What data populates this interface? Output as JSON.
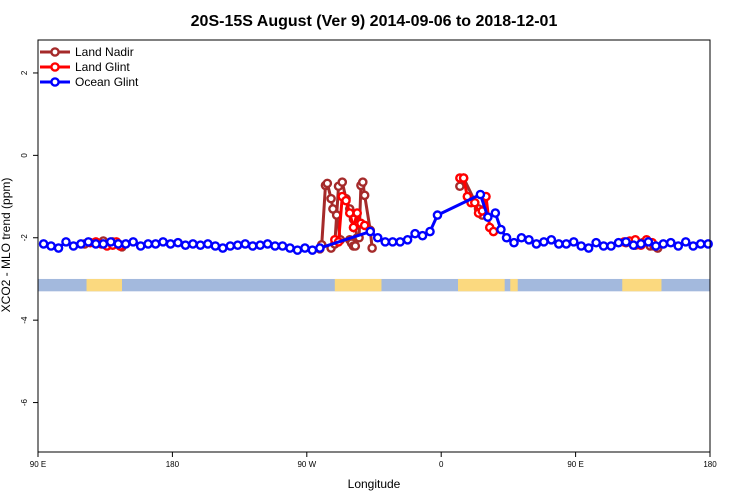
{
  "chart_data": {
    "type": "line",
    "title": "20S-15S August (Ver 9)   2014-09-06 to 2018-12-01",
    "xlabel": "Longitude",
    "ylabel": "XCO2 - MLO trend (ppm)",
    "xlim": [
      0,
      360
    ],
    "ylim": [
      -7.2,
      2.8
    ],
    "x_ticks": [
      {
        "value": 0,
        "label": "90 E"
      },
      {
        "value": 72,
        "label": "180"
      },
      {
        "value": 144,
        "label": "90 W"
      },
      {
        "value": 216,
        "label": "0"
      },
      {
        "value": 288,
        "label": "90 E"
      },
      {
        "value": 360,
        "label": "180"
      }
    ],
    "y_ticks": [
      {
        "value": 2,
        "label": "2"
      },
      {
        "value": 0,
        "label": "0"
      },
      {
        "value": -2,
        "label": "-2"
      },
      {
        "value": -4,
        "label": "-4"
      },
      {
        "value": -6,
        "label": "-6"
      }
    ],
    "legend_position": "top-left",
    "surface_strip": {
      "y_top": -3.0,
      "y_bottom": -3.3,
      "ocean_color": "#a3b9dd",
      "land_color": "#fbd97f",
      "land_segments": [
        [
          26,
          45
        ],
        [
          159,
          184
        ],
        [
          225,
          250
        ],
        [
          253,
          257
        ],
        [
          313,
          334
        ]
      ]
    },
    "series": [
      {
        "name": "Land Nadir",
        "color": "#a52a2a",
        "x": [
          151,
          152,
          154,
          155,
          157,
          158,
          160,
          162,
          167,
          168,
          169,
          170,
          172,
          173,
          174,
          175,
          178,
          179
        ],
        "y": [
          -2.27,
          -2.17,
          -0.73,
          -0.68,
          -1.05,
          -1.3,
          -1.45,
          -2.05,
          -2.05,
          -2.13,
          -2.2,
          -2.2,
          -2.0,
          -0.73,
          -0.65,
          -0.97,
          -1.82,
          -2.25
        ],
        "seg_x": [
          [
            25,
            35,
            40,
            43,
            45
          ],
          [
            157,
            159,
            161,
            163,
            165,
            167,
            169,
            171
          ],
          [
            226,
            228,
            236,
            238
          ],
          [
            315,
            320,
            324,
            328,
            330,
            332
          ]
        ],
        "seg_y": [
          [
            -2.15,
            -2.08,
            -2.1,
            -2.15,
            -2.22
          ],
          [
            -2.25,
            -2.15,
            -0.75,
            -0.65,
            -1.05,
            -1.3,
            -1.55,
            -2.0
          ],
          [
            -0.75,
            -0.55,
            -1.3,
            -1.45
          ],
          [
            -2.12,
            -2.18,
            -2.12,
            -2.2,
            -2.2,
            -2.25
          ]
        ]
      },
      {
        "name": "Land Glint",
        "color": "#ff0000",
        "seg_x": [
          [
            28,
            31,
            34,
            37,
            40,
            42,
            44
          ],
          [
            159,
            161,
            163,
            165,
            167,
            169,
            171,
            173,
            175
          ],
          [
            226,
            228,
            230,
            232,
            234,
            236,
            238,
            240,
            242,
            244
          ],
          [
            314,
            317,
            320,
            323,
            326,
            329
          ]
        ],
        "seg_y": [
          [
            -2.12,
            -2.1,
            -2.15,
            -2.2,
            -2.18,
            -2.1,
            -2.2
          ],
          [
            -2.05,
            -2.1,
            -1.0,
            -1.1,
            -1.4,
            -1.75,
            -1.4,
            -1.65,
            -1.7
          ],
          [
            -0.55,
            -0.55,
            -1.0,
            -1.15,
            -1.15,
            -1.4,
            -1.35,
            -1.0,
            -1.75,
            -1.85
          ],
          [
            -2.1,
            -2.08,
            -2.05,
            -2.18,
            -2.05,
            -2.12
          ]
        ]
      },
      {
        "name": "Ocean Glint",
        "color": "#0000ff",
        "x": [
          3,
          7,
          11,
          15,
          19,
          23,
          27,
          31,
          35,
          39,
          43,
          47,
          51,
          55,
          59,
          63,
          67,
          71,
          75,
          79,
          83,
          87,
          91,
          95,
          99,
          103,
          107,
          111,
          115,
          119,
          123,
          127,
          131,
          135,
          139,
          143,
          147,
          151,
          178,
          182,
          186,
          190,
          194,
          198,
          202,
          206,
          210,
          214,
          237,
          241,
          245,
          248,
          251,
          255,
          259,
          263,
          267,
          271,
          275,
          279,
          283,
          287,
          291,
          295,
          299,
          303,
          307,
          311,
          315,
          319,
          323,
          327,
          331,
          335,
          339,
          343,
          347,
          351,
          355,
          359
        ],
        "y": [
          -2.15,
          -2.2,
          -2.25,
          -2.1,
          -2.2,
          -2.15,
          -2.1,
          -2.15,
          -2.15,
          -2.1,
          -2.15,
          -2.15,
          -2.1,
          -2.2,
          -2.15,
          -2.15,
          -2.1,
          -2.15,
          -2.12,
          -2.18,
          -2.15,
          -2.18,
          -2.15,
          -2.2,
          -2.25,
          -2.2,
          -2.18,
          -2.15,
          -2.2,
          -2.18,
          -2.15,
          -2.2,
          -2.2,
          -2.25,
          -2.3,
          -2.25,
          -2.3,
          -2.25,
          -1.85,
          -2.0,
          -2.1,
          -2.1,
          -2.1,
          -2.05,
          -1.9,
          -1.95,
          -1.85,
          -1.45,
          -0.95,
          -1.5,
          -1.4,
          -1.8,
          -2.0,
          -2.12,
          -2.0,
          -2.05,
          -2.15,
          -2.1,
          -2.05,
          -2.15,
          -2.15,
          -2.1,
          -2.2,
          -2.25,
          -2.12,
          -2.2,
          -2.2,
          -2.12,
          -2.1,
          -2.18,
          -2.15,
          -2.1,
          -2.2,
          -2.15,
          -2.12,
          -2.2,
          -2.1,
          -2.2,
          -2.15,
          -2.15
        ]
      }
    ]
  }
}
